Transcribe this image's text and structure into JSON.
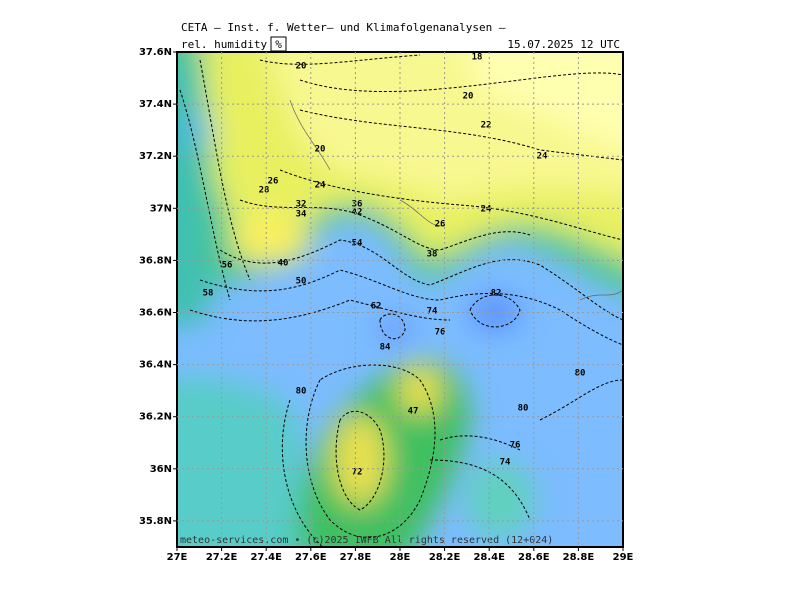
{
  "header": {
    "title": "CETA – Inst. f. Wetter– und Klimafolgenanalysen –",
    "field": "rel. humidity",
    "unit": "%",
    "time": "15.07.2025 12 UTC"
  },
  "map": {
    "lat_labels": [
      "37.6N",
      "37.4N",
      "37.2N",
      "37N",
      "36.8N",
      "36.6N",
      "36.4N",
      "36.2N",
      "36N",
      "35.8N"
    ],
    "lon_labels": [
      "27E",
      "27.2E",
      "27.4E",
      "27.6E",
      "27.8E",
      "28E",
      "28.2E",
      "28.4E",
      "28.6E",
      "28.8E",
      "29E"
    ],
    "contour_labels": [
      "18",
      "20",
      "20",
      "22",
      "24",
      "26",
      "20",
      "28",
      "24",
      "24",
      "26",
      "32",
      "34",
      "36",
      "42",
      "54",
      "40",
      "50",
      "56",
      "58",
      "62",
      "74",
      "82",
      "76",
      "84",
      "80",
      "80",
      "80",
      "76",
      "74",
      "47",
      "38",
      "72"
    ],
    "credit": "meteo-services.com • (c)2025 IWFB All rights reserved (12+024)"
  }
}
